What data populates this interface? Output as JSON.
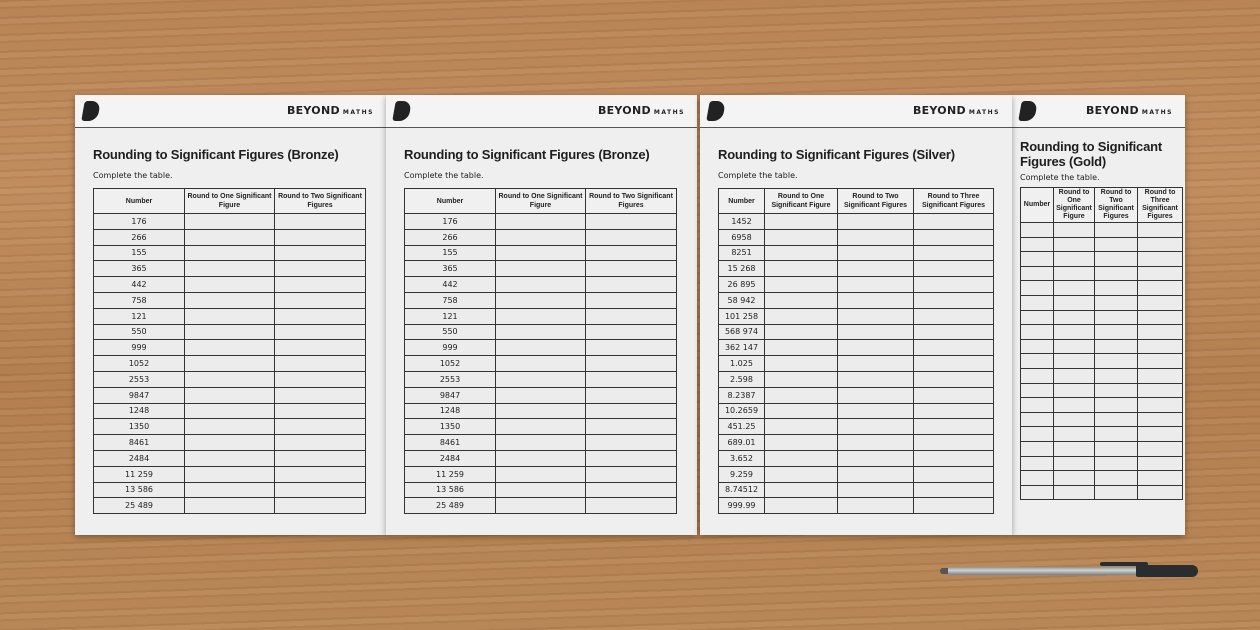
{
  "brand": {
    "name": "BEYOND",
    "sub": "MATHS"
  },
  "instruction": "Complete the table.",
  "sheets": [
    {
      "title": "Rounding to Significant Figures (Bronze)",
      "headers": [
        "Number",
        "Round to One Significant Figure",
        "Round to Two Significant Figures"
      ],
      "numbers": [
        "176",
        "266",
        "155",
        "365",
        "442",
        "758",
        "121",
        "550",
        "999",
        "1052",
        "2553",
        "9847",
        "1248",
        "1350",
        "8461",
        "2484",
        "11 259",
        "13 586",
        "25 489"
      ]
    },
    {
      "title": "Rounding to Significant Figures (Bronze)",
      "headers": [
        "Number",
        "Round to One Significant Figure",
        "Round to Two Significant Figures"
      ],
      "numbers": [
        "176",
        "266",
        "155",
        "365",
        "442",
        "758",
        "121",
        "550",
        "999",
        "1052",
        "2553",
        "9847",
        "1248",
        "1350",
        "8461",
        "2484",
        "11 259",
        "13 586",
        "25 489"
      ]
    },
    {
      "title": "Rounding to Significant Figures (Silver)",
      "headers": [
        "Number",
        "Round to One Significant Figure",
        "Round to Two Significant Figures",
        "Round to Three Significant Figures"
      ],
      "numbers": [
        "1452",
        "6958",
        "8251",
        "15 268",
        "26 895",
        "58 942",
        "101 258",
        "568 974",
        "362 147",
        "1.025",
        "2.598",
        "8.2387",
        "10.2659",
        "451.25",
        "689.01",
        "3.652",
        "9.259",
        "8.74512",
        "999.99"
      ]
    },
    {
      "title": "Rounding to Significant Figures (Gold)",
      "headers": [
        "Number",
        "Round to One Significant Figure",
        "Round to Two Significant Figures",
        "Round to Three Significant Figures"
      ],
      "numbers": [
        "",
        "",
        "",
        "",
        "",
        "",
        "",
        "",
        "",
        "",
        "",
        "",
        "",
        "",
        "",
        "",
        "",
        "",
        ""
      ]
    }
  ]
}
